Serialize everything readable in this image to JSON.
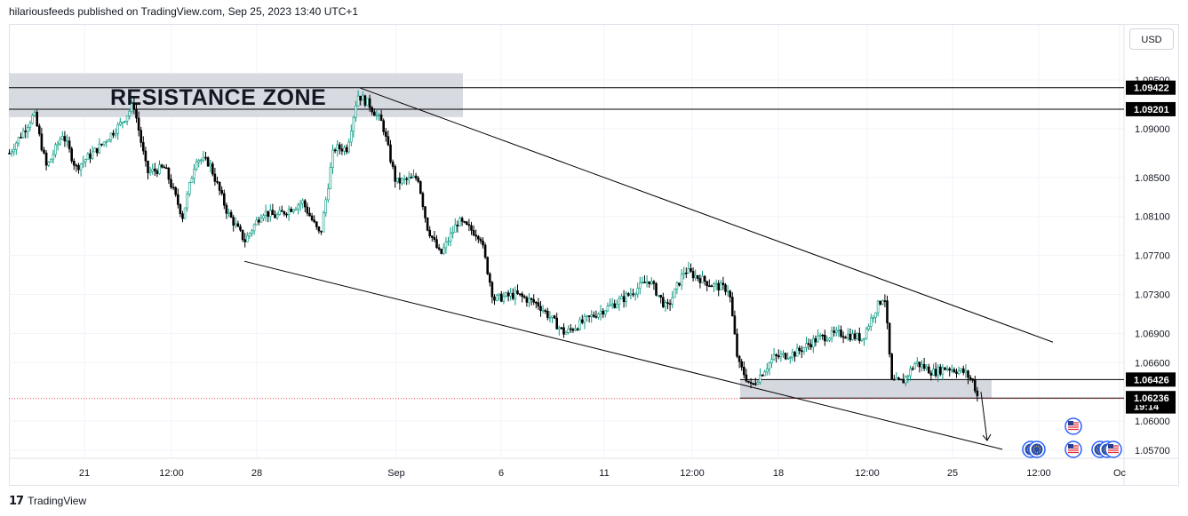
{
  "header": {
    "attribution": "hilariousfeeds published on TradingView.com, Sep 25, 2023 13:40 UTC+1"
  },
  "currency": "USD",
  "footer": {
    "brand": "TradingView",
    "logo_glyph": "17"
  },
  "colors": {
    "up": "#089981",
    "down": "#000000",
    "candle_body_up": "#ffffff",
    "zone_fill": "#d1d4dc",
    "label_bg": "#000000",
    "current_price_line": "#f23645"
  },
  "chart_data": {
    "type": "candlestick",
    "instrument_currency": "USD",
    "y_ticks": [
      1.095,
      1.09,
      1.085,
      1.081,
      1.077,
      1.073,
      1.069,
      1.066,
      1.06,
      1.057
    ],
    "y_tick_labels": [
      "1.09500",
      "1.09000",
      "1.08500",
      "1.08100",
      "1.07700",
      "1.07300",
      "1.06900",
      "1.06600",
      "1.06000",
      "1.05700"
    ],
    "x_tick_labels": [
      "21",
      "12:00",
      "28",
      "Sep",
      "6",
      "11",
      "12:00",
      "18",
      "12:00",
      "25",
      "12:00",
      "Oc"
    ],
    "price_path": [
      [
        0,
        1.0875
      ],
      [
        28,
        1.0915
      ],
      [
        42,
        1.086
      ],
      [
        60,
        1.0895
      ],
      [
        75,
        1.086
      ],
      [
        100,
        1.088
      ],
      [
        125,
        1.0905
      ],
      [
        140,
        1.0925
      ],
      [
        155,
        1.0855
      ],
      [
        175,
        1.086
      ],
      [
        195,
        1.081
      ],
      [
        210,
        1.087
      ],
      [
        225,
        1.0865
      ],
      [
        245,
        1.0815
      ],
      [
        265,
        1.0785
      ],
      [
        285,
        1.0815
      ],
      [
        300,
        1.081
      ],
      [
        330,
        1.0825
      ],
      [
        350,
        1.079
      ],
      [
        365,
        1.088
      ],
      [
        380,
        1.088
      ],
      [
        392,
        1.0935
      ],
      [
        405,
        1.0925
      ],
      [
        420,
        1.0905
      ],
      [
        435,
        1.0845
      ],
      [
        460,
        1.085
      ],
      [
        470,
        1.08
      ],
      [
        485,
        1.077
      ],
      [
        505,
        1.0805
      ],
      [
        530,
        1.079
      ],
      [
        545,
        1.0725
      ],
      [
        570,
        1.073
      ],
      [
        595,
        1.072
      ],
      [
        625,
        1.069
      ],
      [
        660,
        1.071
      ],
      [
        690,
        1.0725
      ],
      [
        720,
        1.0745
      ],
      [
        740,
        1.0715
      ],
      [
        760,
        1.0755
      ],
      [
        790,
        1.074
      ],
      [
        810,
        1.0735
      ],
      [
        820,
        1.066
      ],
      [
        835,
        1.0635
      ],
      [
        860,
        1.0665
      ],
      [
        885,
        1.067
      ],
      [
        910,
        1.0685
      ],
      [
        935,
        1.069
      ],
      [
        960,
        1.0685
      ],
      [
        975,
        1.0715
      ],
      [
        985,
        1.073
      ],
      [
        993,
        1.064
      ],
      [
        1005,
        1.064
      ],
      [
        1020,
        1.066
      ],
      [
        1040,
        1.065
      ],
      [
        1055,
        1.0655
      ],
      [
        1075,
        1.065
      ],
      [
        1085,
        1.064
      ],
      [
        1090,
        1.06236
      ]
    ],
    "current_price": 1.06236,
    "resistance_zone": {
      "label": "RESISTANCE ZONE",
      "from": 1.09201,
      "to": 1.09422
    },
    "support_zone": {
      "from": 1.06236,
      "to": 1.06426
    },
    "channel": {
      "upper": {
        "from": [
          395,
          1.0942
        ],
        "to": [
          1175,
          1.0681
        ]
      },
      "lower": {
        "from": [
          265,
          1.0764
        ],
        "to": [
          1118,
          1.0571
        ]
      }
    },
    "projection_arrow": {
      "from": [
        1094,
        1.063
      ],
      "to": [
        1101,
        1.058
      ]
    },
    "price_labels": [
      {
        "value": "1.09422",
        "price": 1.09422
      },
      {
        "value": "1.09201",
        "price": 1.09201
      },
      {
        "value": "1.06426",
        "price": 1.06426
      },
      {
        "value": "19:14",
        "price": 1.0615
      },
      {
        "value": "1.06236",
        "price": 1.06236
      }
    ],
    "event_icons": [
      "eu-flag-icon",
      "eu-flag-icon",
      "us-flag-icon",
      "us-flag-icon",
      "eu-flag-icon",
      "eu-flag-icon",
      "us-flag-icon"
    ]
  }
}
